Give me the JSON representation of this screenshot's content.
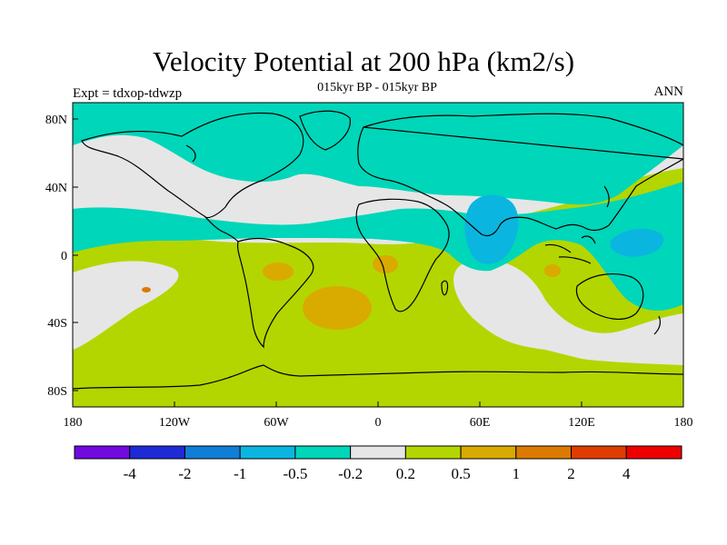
{
  "header": {
    "title": "Velocity Potential at 200 hPa (km2/s)",
    "subtitle": "015kyr BP - 015kyr BP",
    "left": "Expt = tdxop-tdwzp",
    "right": "ANN"
  },
  "axes": {
    "lat_ticks": [
      "80N",
      "40N",
      "0",
      "40S",
      "80S"
    ],
    "lon_ticks": [
      "180",
      "120W",
      "60W",
      "0",
      "60E",
      "120E",
      "180"
    ]
  },
  "colorbar": {
    "colors": [
      "#7209e0",
      "#1e2ad6",
      "#0f7ed6",
      "#0ab6e0",
      "#00d6b9",
      "#e6e6e6",
      "#b3d600",
      "#d9aa00",
      "#dc7a00",
      "#e03c00",
      "#ee0000"
    ],
    "labels": [
      "-4",
      "-2",
      "-1",
      "-0.5",
      "-0.2",
      "0.2",
      "0.5",
      "1",
      "2",
      "4"
    ]
  },
  "map_colors": {
    "cyan": "#00d6b9",
    "blue": "#0ab6e0",
    "gray": "#e6e6e6",
    "yellowgreen": "#b3d600",
    "gold": "#d9aa00",
    "orange": "#dc7a00"
  }
}
